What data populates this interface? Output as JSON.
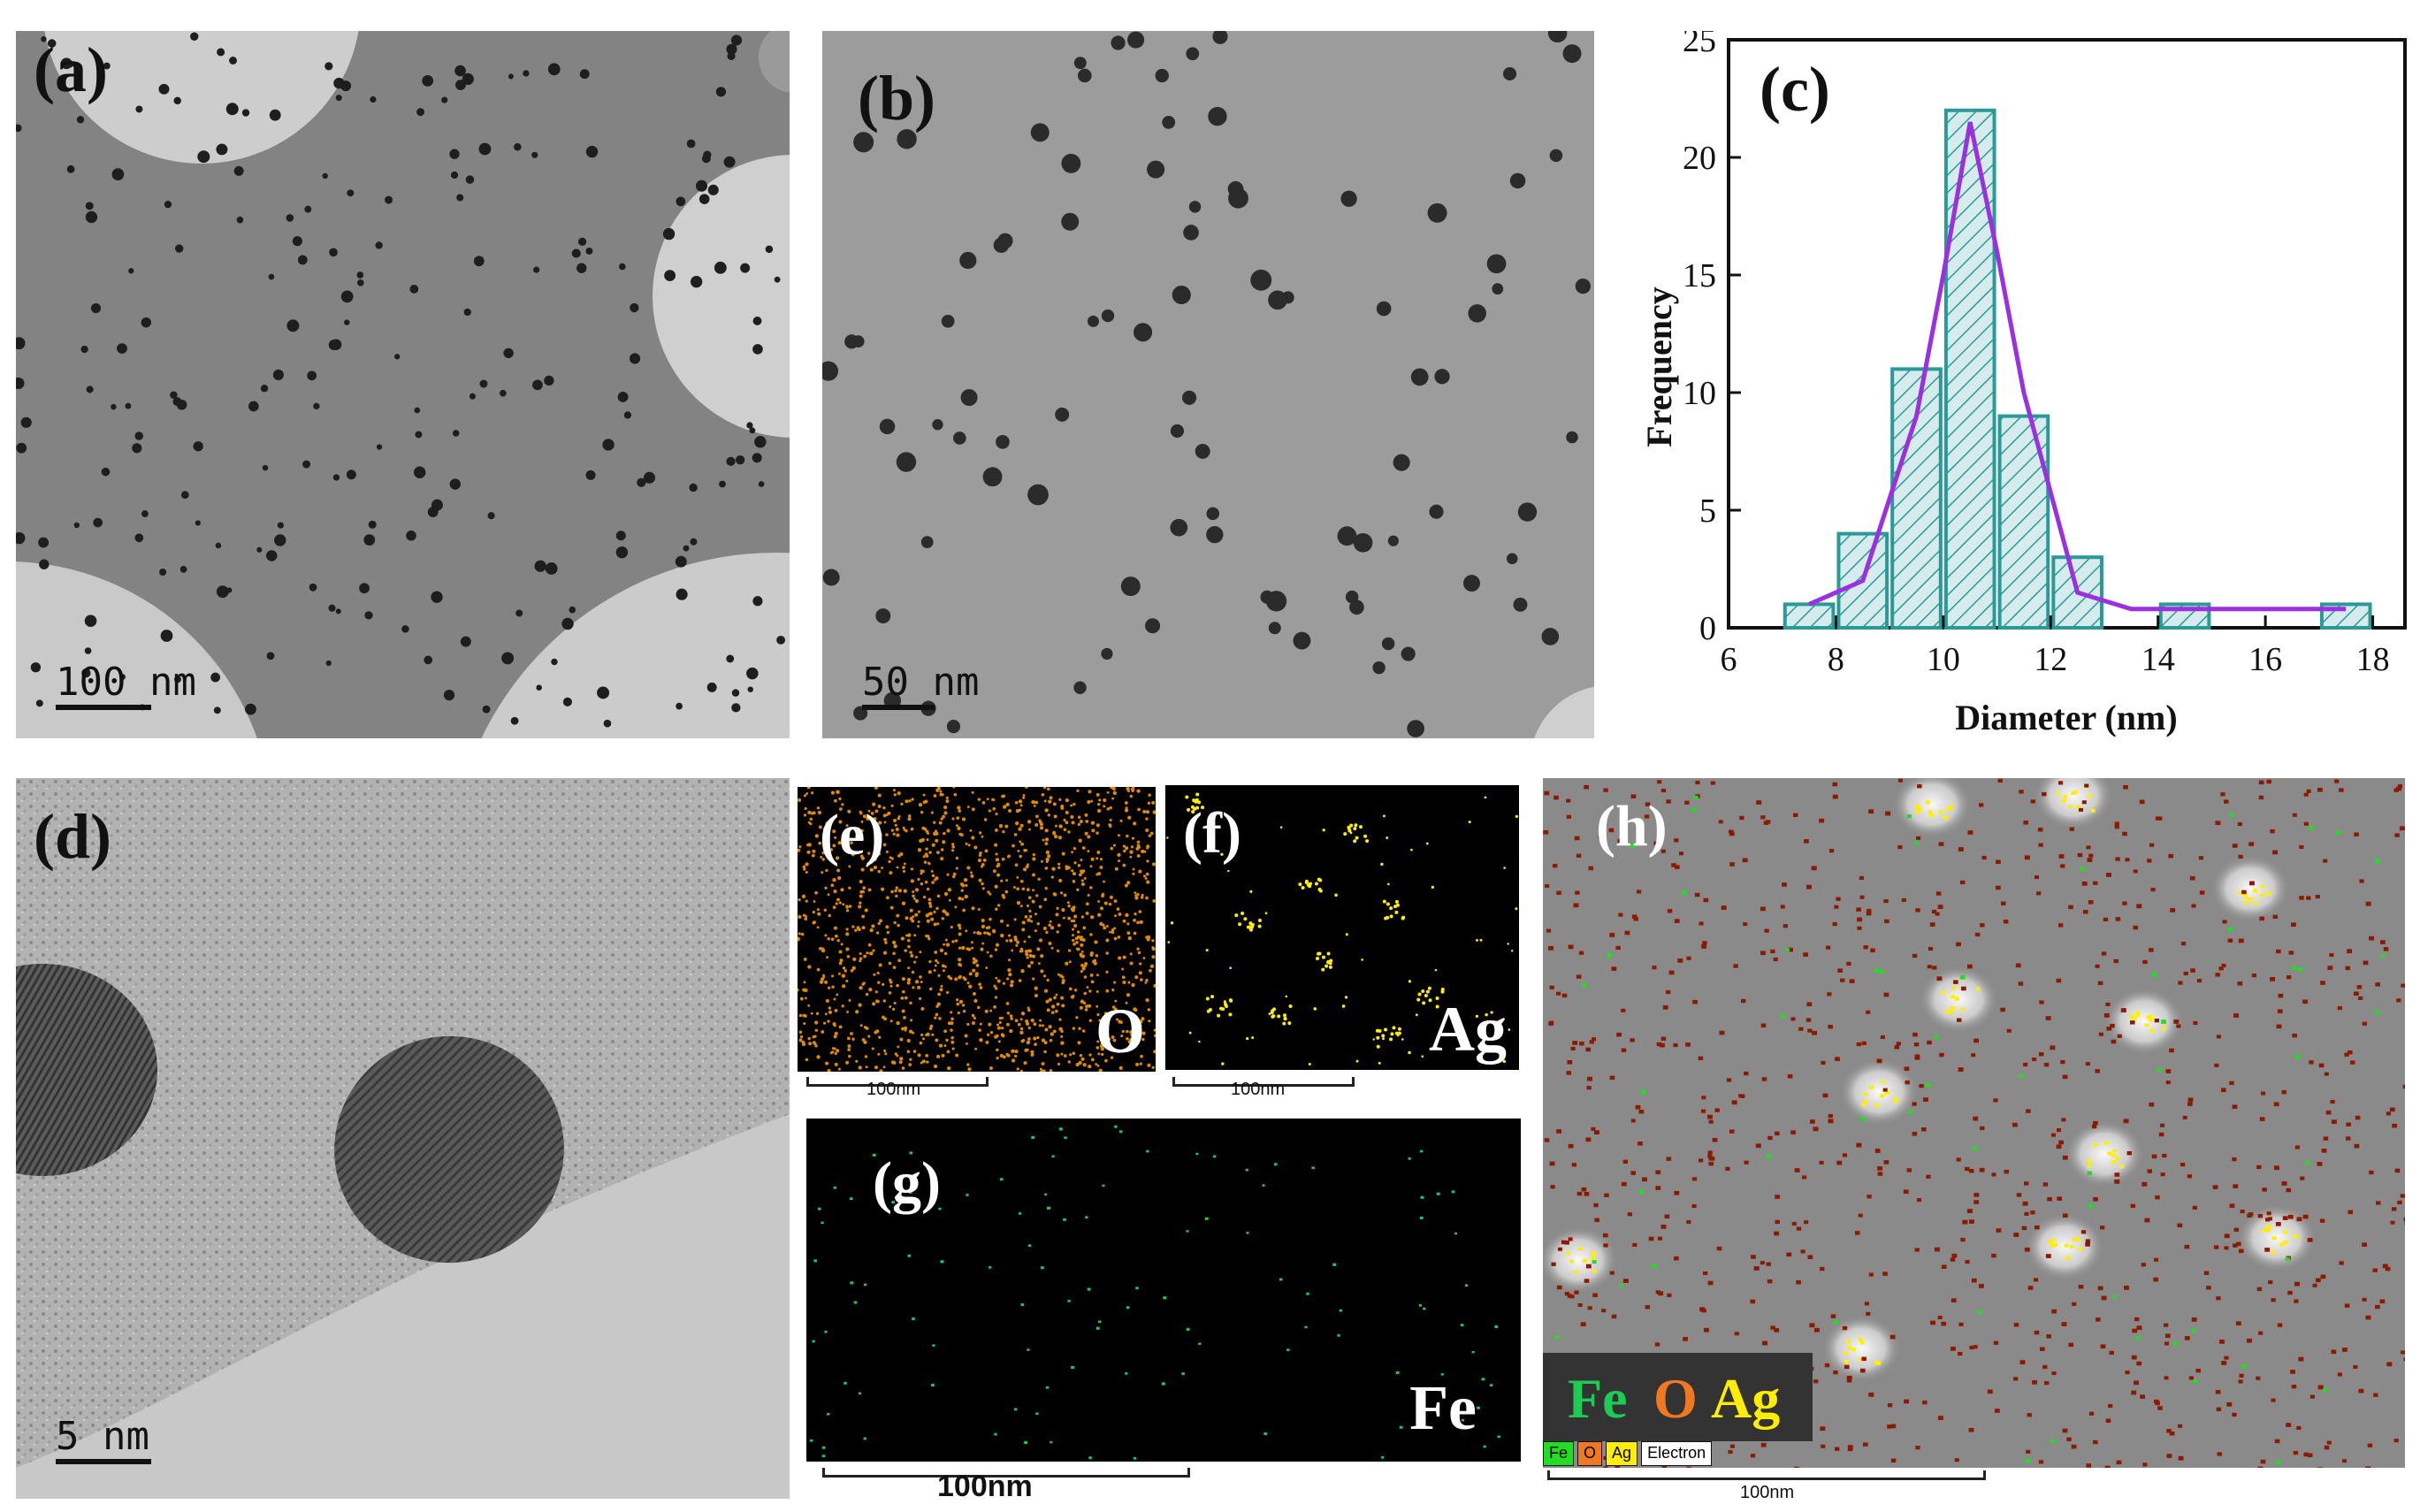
{
  "panels": {
    "a": {
      "label": "(a)",
      "scalebar": "100 nm"
    },
    "b": {
      "label": "(b)",
      "scalebar": "50 nm"
    },
    "d": {
      "label": "(d)",
      "scalebar": "5 nm"
    },
    "e": {
      "label": "(e)",
      "element": "O",
      "scalebar": "100nm"
    },
    "f": {
      "label": "(f)",
      "element": "Ag",
      "scalebar": "100nm"
    },
    "g": {
      "label": "(g)",
      "element": "Fe",
      "scalebar": "100nm"
    },
    "h": {
      "label": "(h)",
      "legend_fe": "Fe",
      "legend_o": "O",
      "legend_ag": "Ag",
      "key": [
        "Fe",
        "O",
        "Ag",
        "Electron"
      ],
      "scalebar": "100nm"
    }
  },
  "colors": {
    "O": "#e08a00",
    "Ag": "#ffee00",
    "Fe": "#22dd22",
    "Fe_map": "#1ecc55",
    "red_dots": "#8b1a00"
  },
  "chart_data": {
    "type": "bar",
    "label": "(c)",
    "xlabel": "Diameter (nm)",
    "ylabel": "Frequency",
    "xlim": [
      6,
      18.6
    ],
    "ylim": [
      0,
      25
    ],
    "xticks": [
      "6",
      "8",
      "10",
      "12",
      "14",
      "16",
      "18"
    ],
    "yticks": [
      "0",
      "5",
      "10",
      "15",
      "20",
      "25"
    ],
    "bin_centers": [
      7.5,
      8.5,
      9.5,
      10.5,
      11.5,
      12.5,
      14.5,
      17.5
    ],
    "bin_width": 0.9,
    "values": [
      1,
      4,
      11,
      22,
      9,
      3,
      1,
      1
    ],
    "fit_curve": {
      "x": [
        7.5,
        8.5,
        9.5,
        10.0,
        10.5,
        11.0,
        11.5,
        12.5,
        13.5,
        14.5,
        17.5
      ],
      "y": [
        1,
        2,
        9,
        15,
        21.5,
        16,
        10,
        1.5,
        0.8,
        0.8,
        0.8
      ]
    },
    "bar_fill": "#d6ecec",
    "bar_edge": "#2a9a98",
    "fit_color": "#9b30e0"
  }
}
